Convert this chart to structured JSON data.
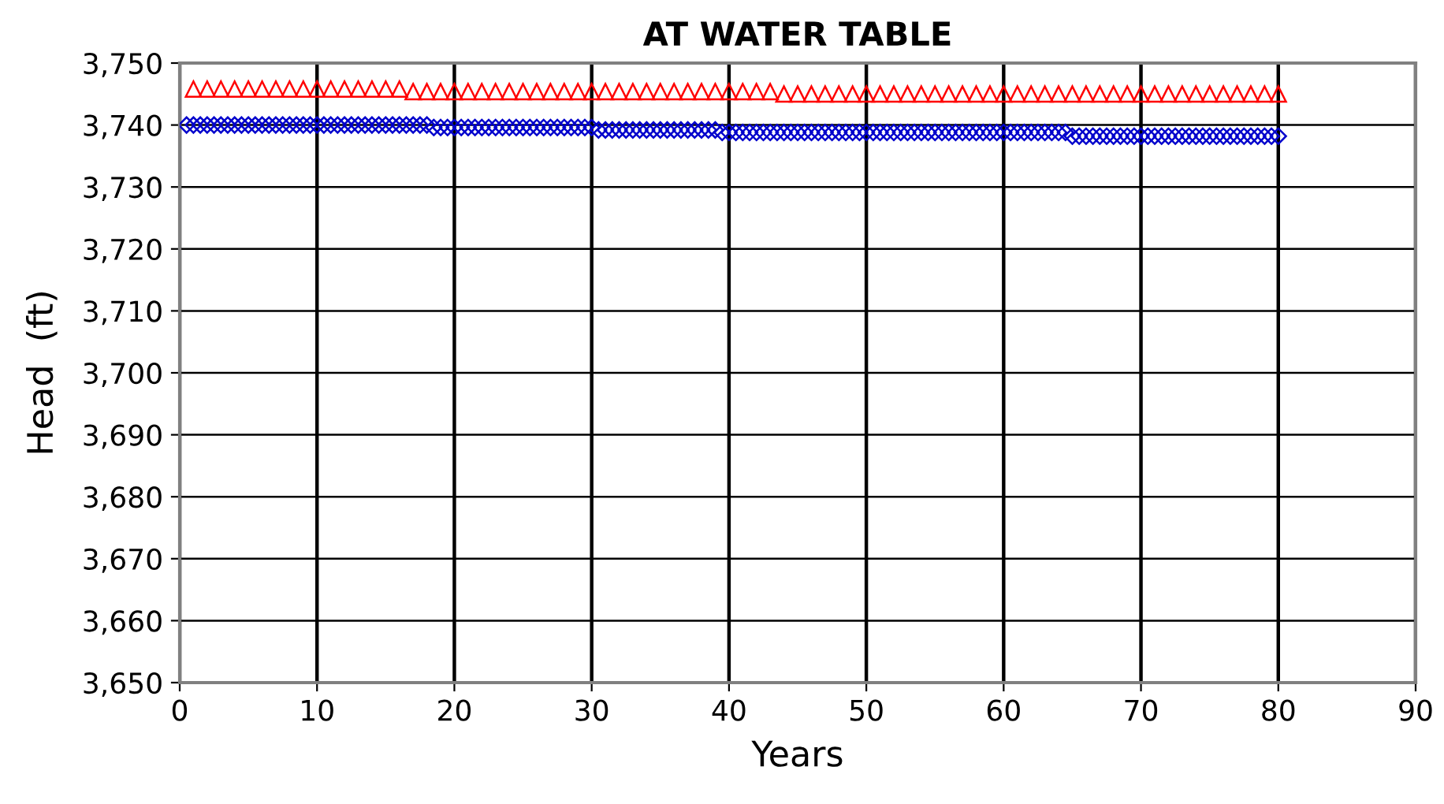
{
  "chart_data": {
    "type": "scatter",
    "title": "AT WATER TABLE",
    "xlabel": "Years",
    "ylabel": "Head  (ft)",
    "xlim": [
      0,
      90
    ],
    "xticks": [
      0,
      10,
      20,
      30,
      40,
      50,
      60,
      70,
      80,
      90
    ],
    "ylim": [
      3650,
      3750
    ],
    "yticks": [
      {
        "value": 3650,
        "label": "3,650"
      },
      {
        "value": 3660,
        "label": "3,660"
      },
      {
        "value": 3670,
        "label": "3,670"
      },
      {
        "value": 3680,
        "label": "3,680"
      },
      {
        "value": 3690,
        "label": "3,690"
      },
      {
        "value": 3700,
        "label": "3,700"
      },
      {
        "value": 3710,
        "label": "3,710"
      },
      {
        "value": 3720,
        "label": "3,720"
      },
      {
        "value": 3730,
        "label": "3,730"
      },
      {
        "value": 3740,
        "label": "3,740"
      },
      {
        "value": 3750,
        "label": "3,750"
      }
    ],
    "grid": true,
    "series": [
      {
        "color": "#ff0000",
        "marker": "triangle",
        "x": [
          1,
          2,
          3,
          4,
          5,
          6,
          7,
          8,
          9,
          10,
          11,
          12,
          13,
          14,
          15,
          16,
          17,
          18,
          19,
          20,
          21,
          22,
          23,
          24,
          25,
          26,
          27,
          28,
          29,
          30,
          31,
          32,
          33,
          34,
          35,
          36,
          37,
          38,
          39,
          40,
          41,
          42,
          43,
          44,
          45,
          46,
          47,
          48,
          49,
          50,
          51,
          52,
          53,
          54,
          55,
          56,
          57,
          58,
          59,
          60,
          61,
          62,
          63,
          64,
          65,
          66,
          67,
          68,
          69,
          70,
          71,
          72,
          73,
          74,
          75,
          76,
          77,
          78,
          79,
          80
        ],
        "values": [
          3745.8,
          3745.8,
          3745.8,
          3745.8,
          3745.8,
          3745.8,
          3745.8,
          3745.8,
          3745.8,
          3745.8,
          3745.8,
          3745.8,
          3745.8,
          3745.8,
          3745.8,
          3745.8,
          3745.4,
          3745.4,
          3745.4,
          3745.4,
          3745.4,
          3745.4,
          3745.4,
          3745.4,
          3745.4,
          3745.4,
          3745.4,
          3745.4,
          3745.4,
          3745.4,
          3745.4,
          3745.4,
          3745.4,
          3745.4,
          3745.4,
          3745.4,
          3745.4,
          3745.4,
          3745.4,
          3745.4,
          3745.4,
          3745.4,
          3745.4,
          3745.0,
          3745.0,
          3745.0,
          3745.0,
          3745.0,
          3745.0,
          3745.0,
          3745.0,
          3745.0,
          3745.0,
          3745.0,
          3745.0,
          3745.0,
          3745.0,
          3745.0,
          3745.0,
          3745.0,
          3745.0,
          3745.0,
          3745.0,
          3745.0,
          3745.0,
          3745.0,
          3745.0,
          3745.0,
          3745.0,
          3745.0,
          3745.0,
          3745.0,
          3745.0,
          3745.0,
          3745.0,
          3745.0,
          3745.0,
          3745.0,
          3745.0,
          3745.0
        ]
      },
      {
        "color": "#0000cc",
        "marker": "diamond",
        "x": [
          0.5,
          1,
          1.5,
          2,
          2.5,
          3,
          3.5,
          4,
          4.5,
          5,
          5.5,
          6,
          6.5,
          7,
          7.5,
          8,
          8.5,
          9,
          9.5,
          10,
          10.5,
          11,
          11.5,
          12,
          12.5,
          13,
          13.5,
          14,
          14.5,
          15,
          15.5,
          16,
          16.5,
          17,
          17.5,
          18,
          18.5,
          19,
          19.5,
          20,
          20.5,
          21,
          21.5,
          22,
          22.5,
          23,
          23.5,
          24,
          24.5,
          25,
          25.5,
          26,
          26.5,
          27,
          27.5,
          28,
          28.5,
          29,
          29.5,
          30,
          30.5,
          31,
          31.5,
          32,
          32.5,
          33,
          33.5,
          34,
          34.5,
          35,
          35.5,
          36,
          36.5,
          37,
          37.5,
          38,
          38.5,
          39,
          39.5,
          40,
          40.5,
          41,
          41.5,
          42,
          42.5,
          43,
          43.5,
          44,
          44.5,
          45,
          45.5,
          46,
          46.5,
          47,
          47.5,
          48,
          48.5,
          49,
          49.5,
          50,
          50.5,
          51,
          51.5,
          52,
          52.5,
          53,
          53.5,
          54,
          54.5,
          55,
          55.5,
          56,
          56.5,
          57,
          57.5,
          58,
          58.5,
          59,
          59.5,
          60,
          60.5,
          61,
          61.5,
          62,
          62.5,
          63,
          63.5,
          64,
          64.5,
          65,
          65.5,
          66,
          66.5,
          67,
          67.5,
          68,
          68.5,
          69,
          69.5,
          70,
          70.5,
          71,
          71.5,
          72,
          72.5,
          73,
          73.5,
          74,
          74.5,
          75,
          75.5,
          76,
          76.5,
          77,
          77.5,
          78,
          78.5,
          79,
          79.5,
          80
        ],
        "values": [
          3740.0,
          3740.0,
          3740.0,
          3740.0,
          3740.0,
          3740.0,
          3740.0,
          3740.0,
          3740.0,
          3740.0,
          3740.0,
          3740.0,
          3740.0,
          3740.0,
          3740.0,
          3740.0,
          3740.0,
          3740.0,
          3740.0,
          3740.0,
          3740.0,
          3740.0,
          3740.0,
          3740.0,
          3740.0,
          3740.0,
          3740.0,
          3740.0,
          3740.0,
          3740.0,
          3740.0,
          3740.0,
          3740.0,
          3740.0,
          3740.0,
          3740.0,
          3739.6,
          3739.6,
          3739.6,
          3739.6,
          3739.6,
          3739.6,
          3739.6,
          3739.6,
          3739.6,
          3739.6,
          3739.6,
          3739.6,
          3739.6,
          3739.6,
          3739.6,
          3739.6,
          3739.6,
          3739.6,
          3739.6,
          3739.6,
          3739.6,
          3739.6,
          3739.6,
          3739.6,
          3739.2,
          3739.2,
          3739.2,
          3739.2,
          3739.2,
          3739.2,
          3739.2,
          3739.2,
          3739.2,
          3739.2,
          3739.2,
          3739.2,
          3739.2,
          3739.2,
          3739.2,
          3739.2,
          3739.2,
          3739.2,
          3738.8,
          3738.8,
          3738.8,
          3738.8,
          3738.8,
          3738.8,
          3738.8,
          3738.8,
          3738.8,
          3738.8,
          3738.8,
          3738.8,
          3738.8,
          3738.8,
          3738.8,
          3738.8,
          3738.8,
          3738.8,
          3738.8,
          3738.8,
          3738.8,
          3738.8,
          3738.8,
          3738.8,
          3738.8,
          3738.8,
          3738.8,
          3738.8,
          3738.8,
          3738.8,
          3738.8,
          3738.8,
          3738.8,
          3738.8,
          3738.8,
          3738.8,
          3738.8,
          3738.8,
          3738.8,
          3738.8,
          3738.8,
          3738.8,
          3738.8,
          3738.8,
          3738.8,
          3738.8,
          3738.8,
          3738.8,
          3738.8,
          3738.8,
          3738.8,
          3738.2,
          3738.2,
          3738.2,
          3738.2,
          3738.2,
          3738.2,
          3738.2,
          3738.2,
          3738.2,
          3738.2,
          3738.2,
          3738.2,
          3738.2,
          3738.2,
          3738.2,
          3738.2,
          3738.2,
          3738.2,
          3738.2,
          3738.2,
          3738.2,
          3738.2,
          3738.2,
          3738.2,
          3738.2,
          3738.2,
          3738.2,
          3738.2,
          3738.2,
          3738.2,
          3738.2
        ]
      }
    ]
  }
}
